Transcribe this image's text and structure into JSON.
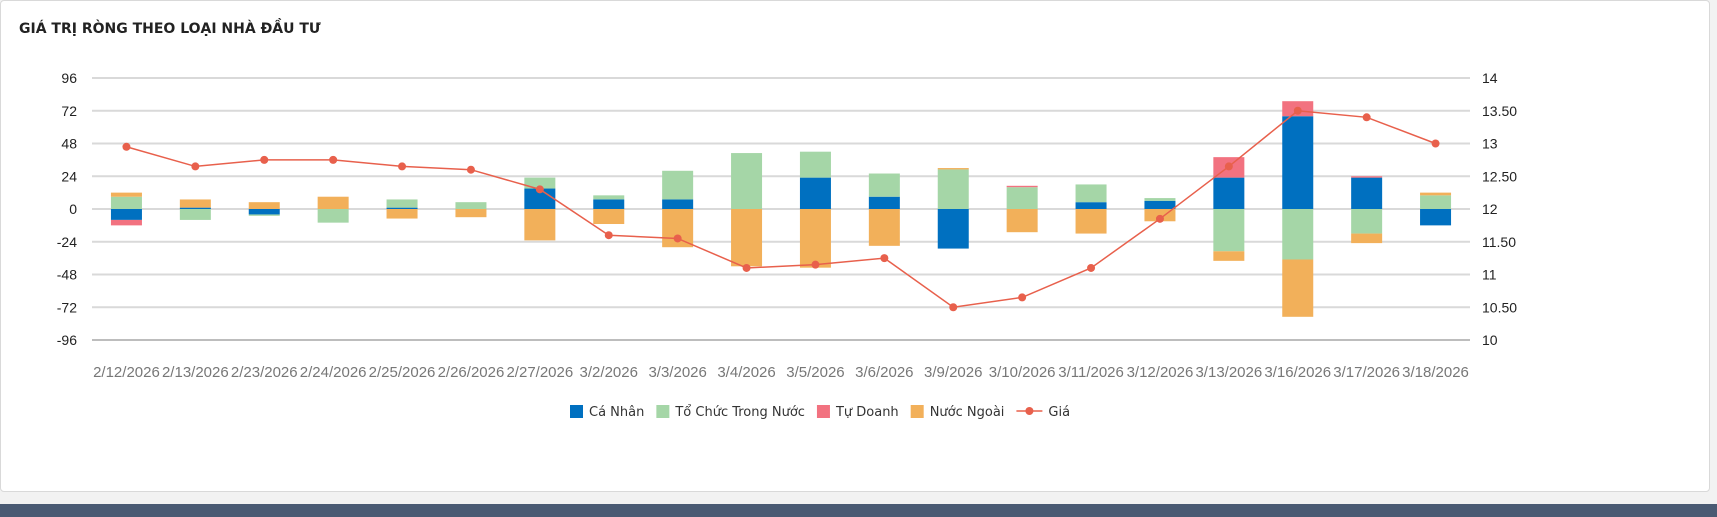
{
  "page": {
    "title": "GIÁ TRỊ RÒNG THEO LOẠI NHÀ ĐẦU TƯ"
  },
  "chart_data": {
    "type": "bar",
    "stacked": true,
    "title": "GIÁ TRỊ RÒNG THEO LOẠI NHÀ ĐẦU TƯ",
    "categories": [
      "2/12/2026",
      "2/13/2026",
      "2/23/2026",
      "2/24/2026",
      "2/25/2026",
      "2/26/2026",
      "2/27/2026",
      "3/2/2026",
      "3/3/2026",
      "3/4/2026",
      "3/5/2026",
      "3/6/2026",
      "3/9/2026",
      "3/10/2026",
      "3/11/2026",
      "3/12/2026",
      "3/13/2026",
      "3/16/2026",
      "3/17/2026",
      "3/18/2026"
    ],
    "left_axis": {
      "min": -96,
      "max": 96,
      "ticks": [
        "96",
        "72",
        "48",
        "24",
        "0",
        "-24",
        "-48",
        "-72",
        "-96"
      ]
    },
    "right_axis": {
      "min": 10,
      "max": 14,
      "ticks": [
        "14",
        "13.50",
        "13",
        "12.50",
        "12",
        "11.50",
        "11",
        "10.50",
        "10"
      ]
    },
    "series": [
      {
        "name": "Cá Nhân",
        "color": "#0070c0",
        "values": [
          -8,
          1,
          -4,
          0,
          1,
          0,
          15,
          7,
          7,
          0,
          23,
          9,
          -29,
          0,
          5,
          6,
          23,
          68,
          23,
          -12
        ]
      },
      {
        "name": "Tổ Chức Trong Nước",
        "color": "#a5d6a7",
        "values": [
          9,
          -8,
          -1,
          -10,
          6,
          5,
          8,
          3,
          21,
          41,
          19,
          17,
          29,
          16,
          13,
          2,
          -31,
          -37,
          -18,
          10
        ]
      },
      {
        "name": "Tự Doanh",
        "color": "#f27280",
        "values": [
          -4,
          0,
          0,
          0,
          0,
          0,
          0,
          0,
          0,
          0,
          0,
          0,
          0,
          1,
          0,
          0,
          15,
          11,
          1,
          0
        ]
      },
      {
        "name": "Nước Ngoài",
        "color": "#f2b05a",
        "values": [
          3,
          6,
          5,
          9,
          -7,
          -6,
          -23,
          -11,
          -28,
          -42,
          -43,
          -27,
          1,
          -17,
          -18,
          -9,
          -7,
          -42,
          -7,
          2
        ]
      }
    ],
    "line": {
      "name": "Giá",
      "color": "#e8604c",
      "values": [
        12.95,
        12.65,
        12.75,
        12.75,
        12.65,
        12.6,
        12.3,
        11.6,
        11.55,
        11.1,
        11.15,
        11.25,
        10.5,
        10.65,
        11.1,
        11.85,
        12.65,
        13.5,
        13.4,
        13.0
      ]
    }
  }
}
